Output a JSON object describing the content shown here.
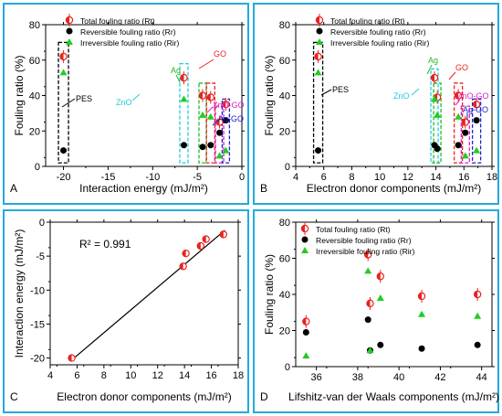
{
  "chart_data": [
    {
      "panel_letter": "A",
      "type": "scatter",
      "xlabel": "Interaction energy (mJ/m²)",
      "ylabel": "Fouling ratio (%)",
      "xlim": [
        -22,
        0
      ],
      "ylim": [
        0,
        80
      ],
      "x_ticks": [
        "-20",
        "-15",
        "-10",
        "-5",
        "0"
      ],
      "y_ticks": [
        "0",
        "20",
        "40",
        "60",
        "80"
      ],
      "legend": [
        "Total fouling ratio (Rt)",
        "Reversible fouling ratio (Rr)",
        "Irreversible fouling ratio (Rir)"
      ],
      "series": [
        {
          "name": "Total fouling ratio (Rt)",
          "x": [
            -20.0,
            -6.5,
            -4.4,
            -3.5,
            -2.5,
            -1.8
          ],
          "y": [
            62,
            50,
            40,
            39,
            25,
            35
          ]
        },
        {
          "name": "Reversible fouling ratio (Rr)",
          "x": [
            -20.0,
            -6.5,
            -4.4,
            -3.5,
            -2.5,
            -1.8
          ],
          "y": [
            9,
            12,
            11,
            12,
            19,
            26
          ]
        },
        {
          "name": "Irreversible fouling ratio (Rir)",
          "x": [
            -20.0,
            -6.5,
            -4.4,
            -3.5,
            -2.5,
            -1.8
          ],
          "y": [
            53,
            38,
            29,
            28,
            6,
            9
          ]
        }
      ],
      "annotations": [
        "PES",
        "ZnO",
        "Ag",
        "GO",
        "ZnO-GO",
        "Ag-GO"
      ]
    },
    {
      "panel_letter": "B",
      "type": "scatter",
      "xlabel": "Electron donor components (mJ/m²)",
      "ylabel": "Fouling ratio (%)",
      "xlim": [
        4,
        18
      ],
      "ylim": [
        0,
        80
      ],
      "x_ticks": [
        "4",
        "6",
        "8",
        "10",
        "12",
        "14",
        "16",
        "18"
      ],
      "y_ticks": [
        "0",
        "20",
        "40",
        "60",
        "80"
      ],
      "legend": [
        "Total fouling ratio (Rt)",
        "Reversible fouling ratio (Rr)",
        "Irreversible fouling ratio (Rir)"
      ],
      "series": [
        {
          "name": "Total fouling ratio (Rt)",
          "x": [
            5.6,
            13.9,
            14.1,
            15.6,
            16.1,
            16.9
          ],
          "y": [
            62,
            50,
            39,
            40,
            25,
            35
          ]
        },
        {
          "name": "Reversible fouling ratio (Rr)",
          "x": [
            5.6,
            13.9,
            14.1,
            15.6,
            16.1,
            16.9
          ],
          "y": [
            9,
            12,
            10,
            12,
            19,
            26
          ]
        },
        {
          "name": "Irreversible fouling ratio (Rir)",
          "x": [
            5.6,
            13.9,
            14.1,
            15.6,
            16.1,
            16.9
          ],
          "y": [
            53,
            38,
            29,
            28,
            6,
            9
          ]
        }
      ],
      "annotations": [
        "PES",
        "ZnO",
        "Ag",
        "GO",
        "ZnO-GO",
        "Ag-GO"
      ]
    },
    {
      "panel_letter": "C",
      "type": "scatter",
      "xlabel": "Electron donor components (mJ/m²)",
      "ylabel": "Interaction energy (mJ/m²)",
      "xlim": [
        4,
        18
      ],
      "ylim": [
        -21,
        0
      ],
      "x_ticks": [
        "4",
        "6",
        "8",
        "10",
        "12",
        "14",
        "16",
        "18"
      ],
      "y_ticks": [
        "-20",
        "-15",
        "-10",
        "-5",
        "0"
      ],
      "r_squared": "R² = 0.991",
      "points": {
        "x": [
          5.6,
          13.9,
          14.1,
          15.2,
          15.6,
          16.9
        ],
        "y": [
          -20.0,
          -6.5,
          -4.6,
          -3.5,
          -2.5,
          -1.8
        ]
      },
      "fit_line": {
        "x": [
          5.6,
          17.0
        ],
        "y": [
          -20.3,
          -1.2
        ]
      }
    },
    {
      "panel_letter": "D",
      "type": "scatter",
      "xlabel": "Lifshitz-van der Waals components (mJ/m²)",
      "ylabel": "Fouling ratio (%)",
      "xlim": [
        35,
        44.5
      ],
      "ylim": [
        0,
        80
      ],
      "x_ticks": [
        "36",
        "38",
        "40",
        "42",
        "44"
      ],
      "y_ticks": [
        "0",
        "20",
        "40",
        "60",
        "80"
      ],
      "legend": [
        "Total fouling ratio (Rt)",
        "Reversible fouling ratio (Rr)",
        "Irreversible fouling ratio (Rir)"
      ],
      "series": [
        {
          "name": "Total fouling ratio (Rt)",
          "x": [
            35.5,
            38.5,
            38.6,
            39.1,
            41.1,
            43.8
          ],
          "y": [
            25,
            62,
            35,
            50,
            39,
            40
          ]
        },
        {
          "name": "Reversible fouling ratio (Rr)",
          "x": [
            35.5,
            38.5,
            38.6,
            39.1,
            41.1,
            43.8
          ],
          "y": [
            19,
            26,
            9,
            12,
            10,
            12
          ]
        },
        {
          "name": "Irreversible fouling ratio (Rir)",
          "x": [
            35.5,
            38.5,
            38.6,
            39.1,
            41.1,
            43.8
          ],
          "y": [
            6,
            53,
            9,
            38,
            29,
            28
          ]
        }
      ]
    }
  ],
  "colors": {
    "panel_border": "#22aadd",
    "total": "#e8231f",
    "reversible": "#000000",
    "irreversible": "#22cc22",
    "pes": "#000000",
    "zno": "#22ccdd",
    "ag": "#22bb22",
    "go": "#ee2222",
    "zno_go": "#dd22cc",
    "ag_go": "#2222cc"
  },
  "annotation_colors": [
    "#000000",
    "#22ccdd",
    "#22bb22",
    "#ee2222",
    "#dd22cc",
    "#2222cc"
  ]
}
